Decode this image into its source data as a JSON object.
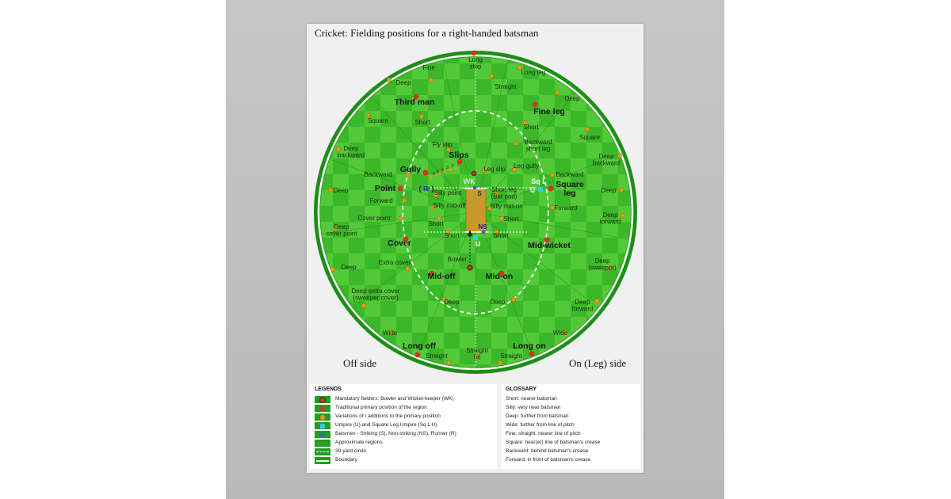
{
  "title": "Cricket: Fielding positions for a right-handed batsman",
  "off_side_label": "Off side",
  "leg_side_label": "On (Leg) side",
  "colors": {
    "grass_light": "#4ec632",
    "grass_dark": "#2aa51f",
    "mandatory": "#c63a2a",
    "primary": "#e0301e",
    "variation": "#e89a1a",
    "umpire": "#2fd0e6",
    "batsman": "#3a62c8",
    "pitch": "#c69a2a"
  },
  "fielders": [
    {
      "label": "Long\nstop",
      "type": "primary",
      "big": false
    },
    {
      "label": "Fine",
      "type": "variation",
      "big": false
    },
    {
      "label": "Straight",
      "type": "variation",
      "big": false
    },
    {
      "label": "Long leg",
      "type": "variation",
      "big": false
    },
    {
      "label": "Deep",
      "type": "variation",
      "big": false
    },
    {
      "label": "Deep",
      "type": "variation",
      "big": false
    },
    {
      "label": "Third man",
      "type": "primary",
      "big": true
    },
    {
      "label": "Fine leg",
      "type": "primary",
      "big": true
    },
    {
      "label": "Square",
      "type": "variation",
      "big": false
    },
    {
      "label": "Short",
      "type": "variation",
      "big": false
    },
    {
      "label": "Short",
      "type": "variation",
      "big": false
    },
    {
      "label": "Square",
      "type": "variation",
      "big": false
    },
    {
      "label": "Deep\nbackward",
      "type": "variation",
      "big": false
    },
    {
      "label": "Backward\nshort leg",
      "type": "variation",
      "big": false
    },
    {
      "label": "Deep\nbackward",
      "type": "variation",
      "big": false
    },
    {
      "label": "Fly slip",
      "type": "variation",
      "big": false
    },
    {
      "label": "Slips",
      "type": "primary",
      "big": true
    },
    {
      "label": "Gully",
      "type": "primary",
      "big": true
    },
    {
      "label": "Leg slip",
      "type": "variation",
      "big": false
    },
    {
      "label": "Leg gully",
      "type": "variation",
      "big": false
    },
    {
      "label": "Backward",
      "type": "variation",
      "big": false
    },
    {
      "label": "Backward",
      "type": "variation",
      "big": false
    },
    {
      "label": "Point",
      "type": "primary",
      "big": true
    },
    {
      "label": "Deep",
      "type": "variation",
      "big": false
    },
    {
      "label": "Square\nleg",
      "type": "primary",
      "big": true
    },
    {
      "label": "Deep",
      "type": "variation",
      "big": false
    },
    {
      "label": "Silly point",
      "type": "variation",
      "big": false
    },
    {
      "label": "Short leg\n(Bat pad)",
      "type": "variation",
      "big": false
    },
    {
      "label": "Forward",
      "type": "variation",
      "big": false
    },
    {
      "label": "Forward",
      "type": "variation",
      "big": false
    },
    {
      "label": "Silly mid-off",
      "type": "variation",
      "big": false
    },
    {
      "label": "Silly mid-on",
      "type": "variation",
      "big": false
    },
    {
      "label": "Cover point",
      "type": "variation",
      "big": false
    },
    {
      "label": "Deep\nforward",
      "type": "variation",
      "big": false
    },
    {
      "label": "Short",
      "type": "variation",
      "big": false
    },
    {
      "label": "Short",
      "type": "variation",
      "big": false
    },
    {
      "label": "Deep\ncover point",
      "type": "variation",
      "big": false
    },
    {
      "label": "Short",
      "type": "variation",
      "big": false
    },
    {
      "label": "Short",
      "type": "variation",
      "big": false
    },
    {
      "label": "Cover",
      "type": "primary",
      "big": true
    },
    {
      "label": "Mid-wicket",
      "type": "primary",
      "big": true
    },
    {
      "label": "Extra cover",
      "type": "variation",
      "big": false
    },
    {
      "label": "Deep\n(sweeper)",
      "type": "variation",
      "big": false
    },
    {
      "label": "Deep",
      "type": "variation",
      "big": false
    },
    {
      "label": "Bowler",
      "type": "mandatory",
      "big": false
    },
    {
      "label": "Mid-off",
      "type": "primary",
      "big": true
    },
    {
      "label": "Mid-on",
      "type": "primary",
      "big": true
    },
    {
      "label": "Deep extra cover\n(sweeper cover)",
      "type": "variation",
      "big": false
    },
    {
      "label": "Deep",
      "type": "variation",
      "big": false
    },
    {
      "label": "Deep",
      "type": "variation",
      "big": false
    },
    {
      "label": "Deep\nforward",
      "type": "variation",
      "big": false
    },
    {
      "label": "Wide",
      "type": "variation",
      "big": false
    },
    {
      "label": "Wide",
      "type": "variation",
      "big": false
    },
    {
      "label": "Long off",
      "type": "primary",
      "big": true
    },
    {
      "label": "Straight\nhit",
      "type": "variation",
      "big": false
    },
    {
      "label": "Long on",
      "type": "primary",
      "big": true
    },
    {
      "label": "Straight",
      "type": "variation",
      "big": false
    },
    {
      "label": "Straight",
      "type": "variation",
      "big": false
    }
  ],
  "markers": {
    "wk": "WK",
    "striker": "S",
    "non_striker": "NS",
    "runner": "R",
    "umpire": "U",
    "square_leg_umpire": "Sq L",
    "square_leg_umpire_u": "U",
    "slip_numbers": [
      "1",
      "2",
      "3",
      "4",
      "5",
      "6"
    ]
  },
  "legend": {
    "title": "LEGENDS",
    "items": [
      {
        "label": "Mandatory fielders: Bowler and Wicket-keeper (WK)",
        "symbol": "mandatory"
      },
      {
        "label": "Traditional primary position of the region",
        "symbol": "primary"
      },
      {
        "label": "Variations of / additions to the primary position",
        "symbol": "variation"
      },
      {
        "label": "Umpire (U) and Square Leg Umpire (Sq L U)",
        "symbol": "umpire"
      },
      {
        "label": "Batsmen - Striking (S), Non-striking (NS), Runner (R)",
        "symbol": "batsman"
      },
      {
        "label": "Approximate regions",
        "symbol": "regions"
      },
      {
        "label": "30-yard circle",
        "symbol": "circle30"
      },
      {
        "label": "Boundary",
        "symbol": "boundary"
      }
    ]
  },
  "glossary": {
    "title": "GLOSSARY",
    "items": [
      "Short: nearer batsman",
      "Silly: very near batsman",
      "Deep: further from batsman",
      "Wide: further from line of pitch",
      "Fine, straight: nearer line of pitch",
      "Square: near(er) line of batsman's crease",
      "Backward: behind batsman's crease",
      "Forward: in front of batsman's crease"
    ]
  }
}
